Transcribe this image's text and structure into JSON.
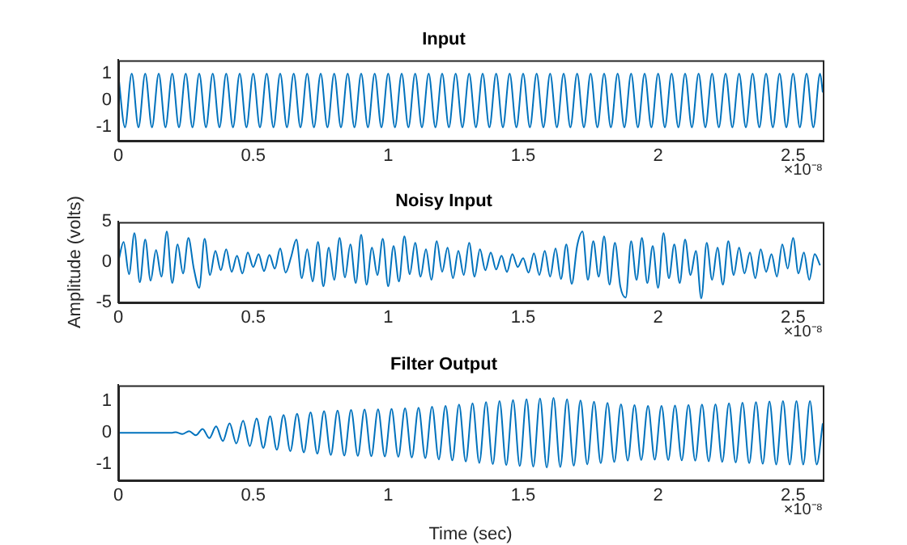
{
  "chart_data": [
    {
      "type": "line",
      "title": "Input",
      "annotations": [
        "×10⁻⁸"
      ],
      "xlim": [
        0,
        2.61
      ],
      "xticks": [
        0,
        0.5,
        1,
        1.5,
        2,
        2.5
      ],
      "ylim": [
        -1.5,
        1.5
      ],
      "yticks": [
        -1,
        0,
        1
      ],
      "grid": false,
      "legend": false,
      "marker": "none",
      "line_style": "solid",
      "x": [
        0,
        0.025,
        0.05,
        0.075,
        0.1,
        0.125,
        0.15,
        0.175,
        0.2,
        0.225,
        0.25,
        0.275,
        0.3,
        0.325,
        0.35,
        0.375,
        0.4,
        0.425,
        0.45,
        0.475,
        0.5,
        0.525,
        0.55,
        0.575,
        0.6,
        0.625,
        0.65,
        0.675,
        0.7,
        0.725,
        0.75,
        0.775,
        0.8,
        0.825,
        0.85,
        0.875,
        0.9,
        0.925,
        0.95,
        0.975,
        1,
        1.025,
        1.05,
        1.075,
        1.1,
        1.125,
        1.15,
        1.175,
        1.2,
        1.225,
        1.25,
        1.275,
        1.3,
        1.325,
        1.35,
        1.375,
        1.4,
        1.425,
        1.45,
        1.475,
        1.5,
        1.525,
        1.55,
        1.575,
        1.6,
        1.625,
        1.65,
        1.675,
        1.7,
        1.725,
        1.75,
        1.775,
        1.8,
        1.825,
        1.85,
        1.875,
        1.9,
        1.925,
        1.95,
        1.975,
        2,
        2.025,
        2.05,
        2.075,
        2.1,
        2.125,
        2.15,
        2.175,
        2.2,
        2.225,
        2.25,
        2.275,
        2.3,
        2.325,
        2.35,
        2.375,
        2.4,
        2.425,
        2.45,
        2.475,
        2.5,
        2.525,
        2.55,
        2.575,
        2.6,
        2.61
      ],
      "series": [
        {
          "color": "#0072bd",
          "values": [
            1,
            -1,
            1,
            -1,
            1,
            -1,
            1,
            -1,
            1,
            -1,
            1,
            -1,
            1,
            -1,
            1,
            -1,
            1,
            -1,
            1,
            -1,
            1,
            -1,
            1,
            -1,
            1,
            -1,
            1,
            -1,
            1,
            -1,
            1,
            -1,
            1,
            -1,
            1,
            -1,
            1,
            -1,
            1,
            -1,
            1,
            -1,
            1,
            -1,
            1,
            -1,
            1,
            -1,
            1,
            -1,
            1,
            -1,
            1,
            -1,
            1,
            -1,
            1,
            -1,
            1,
            -1,
            1,
            -1,
            1,
            -1,
            1,
            -1,
            1,
            -1,
            1,
            -1,
            1,
            -1,
            1,
            -1,
            1,
            -1,
            1,
            -1,
            1,
            -1,
            1,
            -1,
            1,
            -1,
            1,
            -1,
            1,
            -1,
            1,
            -1,
            1,
            -1,
            1,
            -1,
            1,
            -1,
            1,
            -1,
            1,
            -1,
            1,
            -1,
            1,
            -1,
            1,
            0.3
          ]
        }
      ]
    },
    {
      "type": "line",
      "title": "Noisy Input",
      "ylabel": "Amplitude (volts)",
      "annotations": [
        "×10⁻⁸"
      ],
      "xlim": [
        0,
        2.61
      ],
      "xticks": [
        0,
        0.5,
        1,
        1.5,
        2,
        2.5
      ],
      "ylim": [
        -5,
        5
      ],
      "yticks": [
        -5,
        0,
        5
      ],
      "grid": false,
      "legend": false,
      "marker": "none",
      "line_style": "solid",
      "x": [
        0,
        0.02,
        0.04,
        0.06,
        0.08,
        0.1,
        0.12,
        0.14,
        0.16,
        0.18,
        0.2,
        0.22,
        0.24,
        0.26,
        0.28,
        0.3,
        0.32,
        0.34,
        0.36,
        0.38,
        0.4,
        0.42,
        0.44,
        0.46,
        0.48,
        0.5,
        0.52,
        0.54,
        0.56,
        0.58,
        0.6,
        0.62,
        0.64,
        0.66,
        0.68,
        0.7,
        0.72,
        0.74,
        0.76,
        0.78,
        0.8,
        0.82,
        0.84,
        0.86,
        0.88,
        0.9,
        0.92,
        0.94,
        0.96,
        0.98,
        1,
        1.02,
        1.04,
        1.06,
        1.08,
        1.1,
        1.12,
        1.14,
        1.16,
        1.18,
        1.2,
        1.22,
        1.24,
        1.26,
        1.28,
        1.3,
        1.32,
        1.34,
        1.36,
        1.38,
        1.4,
        1.42,
        1.44,
        1.46,
        1.48,
        1.5,
        1.52,
        1.54,
        1.56,
        1.58,
        1.6,
        1.62,
        1.64,
        1.66,
        1.68,
        1.7,
        1.72,
        1.74,
        1.76,
        1.78,
        1.8,
        1.82,
        1.84,
        1.86,
        1.88,
        1.9,
        1.92,
        1.94,
        1.96,
        1.98,
        2,
        2.02,
        2.04,
        2.06,
        2.08,
        2.1,
        2.12,
        2.14,
        2.16,
        2.18,
        2.2,
        2.22,
        2.24,
        2.26,
        2.28,
        2.3,
        2.32,
        2.34,
        2.36,
        2.38,
        2.4,
        2.42,
        2.44,
        2.46,
        2.48,
        2.5,
        2.52,
        2.54,
        2.56,
        2.58,
        2.6
      ],
      "series": [
        {
          "color": "#0072bd",
          "values": [
            0,
            2.5,
            -1.5,
            3.6,
            -2.5,
            2.8,
            -2.3,
            1.5,
            -1.8,
            3.8,
            -2.6,
            2.2,
            -1.4,
            3,
            -0.8,
            -3.2,
            2.9,
            -1.6,
            1.4,
            -1,
            1.6,
            -1.2,
            0.8,
            -1.4,
            1.2,
            -0.6,
            1,
            -1.1,
            0.9,
            -0.8,
            1.7,
            -1.3,
            0.6,
            2.8,
            -2,
            1.6,
            -2.4,
            2.5,
            -3,
            1.8,
            -2.2,
            3,
            -1.9,
            2.2,
            -2.6,
            3.4,
            -2.8,
            1.8,
            -1.6,
            2.9,
            -3,
            2,
            -2.4,
            3.2,
            -1.5,
            2.4,
            -1.8,
            1.6,
            -2.2,
            2.6,
            -1.2,
            1.8,
            -2,
            1.4,
            -1.6,
            2.4,
            -1.8,
            1.6,
            -1,
            1.2,
            -0.9,
            0.8,
            -1.2,
            1,
            -0.6,
            0.5,
            -1.3,
            1.1,
            -1.6,
            1.4,
            -1.8,
            1.7,
            -2.1,
            2.2,
            -2.7,
            2,
            3.8,
            -2.2,
            2.6,
            -1.8,
            3.2,
            -2.8,
            2.4,
            -3,
            -4.4,
            2.6,
            -2.2,
            3,
            -2.6,
            2,
            -3.2,
            3.6,
            -2,
            2.2,
            -2.6,
            2.8,
            -1.6,
            1.4,
            -4.5,
            2.4,
            -2.2,
            1.8,
            -2.8,
            2.6,
            -1.6,
            1.8,
            -1.4,
            1.2,
            -2,
            1.6,
            -1.2,
            1,
            -1.8,
            2.2,
            -0.8,
            3,
            -1.4,
            1.2,
            -2.2,
            1,
            -0.4
          ]
        }
      ]
    },
    {
      "type": "line",
      "title": "Filter Output",
      "xlabel": "Time (sec)",
      "annotations": [
        "×10⁻⁸"
      ],
      "xlim": [
        0,
        2.61
      ],
      "xticks": [
        0,
        0.5,
        1,
        1.5,
        2,
        2.5
      ],
      "ylim": [
        -1.5,
        1.5
      ],
      "yticks": [
        -1,
        0,
        1
      ],
      "grid": false,
      "legend": false,
      "marker": "none",
      "line_style": "solid",
      "x": [
        0,
        0.1,
        0.2,
        0.2125,
        0.2375,
        0.2625,
        0.2875,
        0.3125,
        0.3375,
        0.3625,
        0.3875,
        0.4125,
        0.4375,
        0.4625,
        0.4875,
        0.5125,
        0.5375,
        0.5625,
        0.5875,
        0.6125,
        0.6375,
        0.6625,
        0.6875,
        0.7125,
        0.7375,
        0.7625,
        0.7875,
        0.8125,
        0.8375,
        0.8625,
        0.8875,
        0.9125,
        0.9375,
        0.9625,
        0.9875,
        1.0125,
        1.0375,
        1.0625,
        1.0875,
        1.1125,
        1.1375,
        1.1625,
        1.1875,
        1.2125,
        1.2375,
        1.2625,
        1.2875,
        1.3125,
        1.3375,
        1.3625,
        1.3875,
        1.4125,
        1.4375,
        1.4625,
        1.4875,
        1.5125,
        1.5375,
        1.5625,
        1.5875,
        1.6125,
        1.6375,
        1.6625,
        1.6875,
        1.7125,
        1.7375,
        1.7625,
        1.7875,
        1.8125,
        1.8375,
        1.8625,
        1.8875,
        1.9125,
        1.9375,
        1.9625,
        1.9875,
        2.0125,
        2.0375,
        2.0625,
        2.0875,
        2.1125,
        2.1375,
        2.1625,
        2.1875,
        2.2125,
        2.2375,
        2.2625,
        2.2875,
        2.3125,
        2.3375,
        2.3625,
        2.3875,
        2.4125,
        2.4375,
        2.4625,
        2.4875,
        2.5125,
        2.5375,
        2.5625,
        2.5875,
        2.61
      ],
      "series": [
        {
          "color": "#0072bd",
          "values": [
            0,
            0,
            0,
            0.02,
            -0.04,
            0.05,
            -0.08,
            0.12,
            -0.17,
            0.2,
            -0.26,
            0.3,
            -0.34,
            0.38,
            -0.42,
            0.45,
            -0.48,
            0.52,
            -0.54,
            0.56,
            -0.58,
            0.6,
            -0.62,
            0.64,
            -0.66,
            0.68,
            -0.7,
            0.7,
            -0.72,
            0.72,
            -0.73,
            0.73,
            -0.74,
            0.74,
            -0.75,
            0.75,
            -0.76,
            0.77,
            -0.78,
            0.79,
            -0.8,
            0.82,
            -0.84,
            0.85,
            -0.87,
            0.89,
            -0.91,
            0.93,
            -0.95,
            0.97,
            -0.99,
            1,
            -1.02,
            1.03,
            -1.05,
            1.06,
            -1.07,
            1.08,
            -1.1,
            1.1,
            -1.08,
            1.06,
            -1.04,
            1.02,
            -1,
            0.98,
            -0.96,
            0.94,
            -0.92,
            0.9,
            -0.88,
            0.87,
            -0.86,
            0.85,
            -0.85,
            0.85,
            -0.86,
            0.86,
            -0.87,
            0.88,
            -0.88,
            0.89,
            -0.9,
            0.9,
            -0.92,
            0.93,
            -0.94,
            0.95,
            -0.96,
            0.97,
            -0.98,
            0.99,
            -1,
            1,
            -1,
            1,
            -1,
            1,
            -1,
            0.3
          ]
        }
      ]
    }
  ]
}
